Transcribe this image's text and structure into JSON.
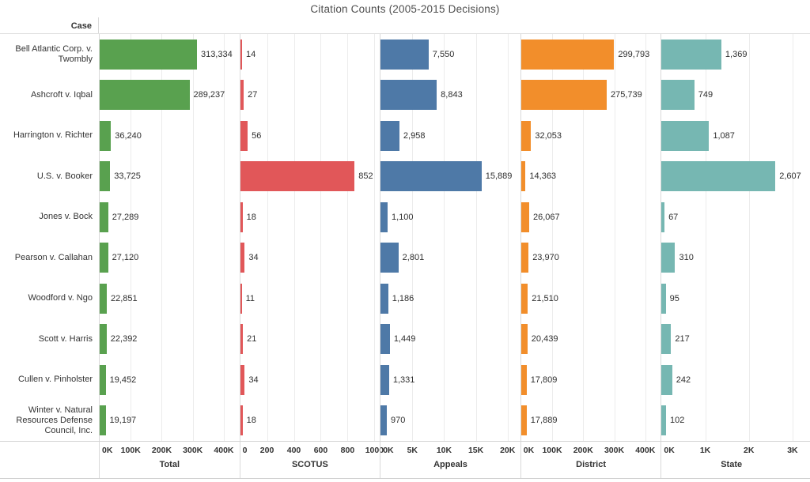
{
  "title": "Citation Counts (2005-2015 Decisions)",
  "row_header": "Case",
  "chart_data": {
    "type": "bar",
    "orientation": "horizontal",
    "grid": true,
    "categories": [
      "Bell Atlantic Corp. v. Twombly",
      "Ashcroft v. Iqbal",
      "Harrington v. Richter",
      "U.S. v. Booker",
      "Jones v. Bock",
      "Pearson v. Callahan",
      "Woodford v. Ngo",
      "Scott v. Harris",
      "Cullen v. Pinholster",
      "Winter v. Natural Resources Defense Council, Inc."
    ],
    "categories_display_lines": [
      [
        "Bell Atlantic Corp. v.",
        "Twombly"
      ],
      [
        "Ashcroft v. Iqbal"
      ],
      [
        "Harrington v. Richter"
      ],
      [
        "U.S. v. Booker"
      ],
      [
        "Jones v. Bock"
      ],
      [
        "Pearson v. Callahan"
      ],
      [
        "Woodford v. Ngo"
      ],
      [
        "Scott v. Harris"
      ],
      [
        "Cullen v. Pinholster"
      ],
      [
        "Winter v. Natural",
        "Resources Defense",
        "Council, Inc."
      ]
    ],
    "series": [
      {
        "name": "Total",
        "color": "#59a14f",
        "axis_max": 450000,
        "ticks": [
          0,
          100000,
          200000,
          300000,
          400000
        ],
        "tick_labels": [
          "0K",
          "100K",
          "200K",
          "300K",
          "400K"
        ],
        "values": [
          313334,
          289237,
          36240,
          33725,
          27289,
          27120,
          22851,
          22392,
          19452,
          19197
        ],
        "value_labels": [
          "313,334",
          "289,237",
          "36,240",
          "33,725",
          "27,289",
          "27,120",
          "22,851",
          "22,392",
          "19,452",
          "19,197"
        ]
      },
      {
        "name": "SCOTUS",
        "color": "#e15759",
        "axis_max": 1040,
        "ticks": [
          0,
          200,
          400,
          600,
          800,
          1000
        ],
        "tick_labels": [
          "0",
          "200",
          "400",
          "600",
          "800",
          "1000"
        ],
        "values": [
          14,
          27,
          56,
          852,
          18,
          34,
          11,
          21,
          34,
          18
        ],
        "value_labels": [
          "14",
          "27",
          "56",
          "852",
          "18",
          "34",
          "11",
          "21",
          "34",
          "18"
        ]
      },
      {
        "name": "Appeals",
        "color": "#4e79a7",
        "axis_max": 22000,
        "ticks": [
          0,
          5000,
          10000,
          15000,
          20000
        ],
        "tick_labels": [
          "0K",
          "5K",
          "10K",
          "15K",
          "20K"
        ],
        "values": [
          7550,
          8843,
          2958,
          15889,
          1100,
          2801,
          1186,
          1449,
          1331,
          970
        ],
        "value_labels": [
          "7,550",
          "8,843",
          "2,958",
          "15,889",
          "1,100",
          "2,801",
          "1,186",
          "1,449",
          "1,331",
          "970"
        ]
      },
      {
        "name": "District",
        "color": "#f28e2b",
        "axis_max": 450000,
        "ticks": [
          0,
          100000,
          200000,
          300000,
          400000
        ],
        "tick_labels": [
          "0K",
          "100K",
          "200K",
          "300K",
          "400K"
        ],
        "values": [
          299793,
          275739,
          32053,
          14363,
          26067,
          23970,
          21510,
          20439,
          17809,
          17889
        ],
        "value_labels": [
          "299,793",
          "275,739",
          "32,053",
          "14,363",
          "26,067",
          "23,970",
          "21,510",
          "20,439",
          "17,809",
          "17,889"
        ]
      },
      {
        "name": "State",
        "color": "#76b7b2",
        "axis_max": 3200,
        "ticks": [
          0,
          1000,
          2000,
          3000
        ],
        "tick_labels": [
          "0K",
          "1K",
          "2K",
          "3K"
        ],
        "values": [
          1369,
          749,
          1087,
          2607,
          67,
          310,
          95,
          217,
          242,
          102
        ],
        "value_labels": [
          "1,369",
          "749",
          "1,087",
          "2,607",
          "67",
          "310",
          "95",
          "217",
          "242",
          "102"
        ]
      }
    ]
  }
}
